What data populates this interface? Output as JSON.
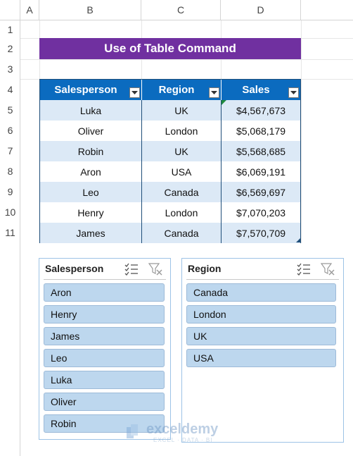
{
  "columns": [
    "A",
    "B",
    "C",
    "D"
  ],
  "rows": [
    "1",
    "2",
    "3",
    "4",
    "5",
    "6",
    "7",
    "8",
    "9",
    "10",
    "11"
  ],
  "title": "Use of Table Command",
  "table": {
    "headers": [
      "Salesperson",
      "Region",
      "Sales"
    ],
    "rows": [
      [
        "Luka",
        "UK",
        "$4,567,673"
      ],
      [
        "Oliver",
        "London",
        "$5,068,179"
      ],
      [
        "Robin",
        "UK",
        "$5,568,685"
      ],
      [
        "Aron",
        "USA",
        "$6,069,191"
      ],
      [
        "Leo",
        "Canada",
        "$6,569,697"
      ],
      [
        "Henry",
        "London",
        "$7,070,203"
      ],
      [
        "James",
        "Canada",
        "$7,570,709"
      ]
    ]
  },
  "slicers": [
    {
      "title": "Salesperson",
      "items": [
        "Aron",
        "Henry",
        "James",
        "Leo",
        "Luka",
        "Oliver",
        "Robin"
      ]
    },
    {
      "title": "Region",
      "items": [
        "Canada",
        "London",
        "UK",
        "USA"
      ]
    }
  ],
  "watermark": {
    "brand": "exceldemy",
    "tagline": "EXCEL · DATA · BI"
  },
  "colors": {
    "title_bg": "#7030a0",
    "header_bg": "#0b6bbf",
    "band": "#dce9f6",
    "slicer_item": "#bdd7ee"
  }
}
